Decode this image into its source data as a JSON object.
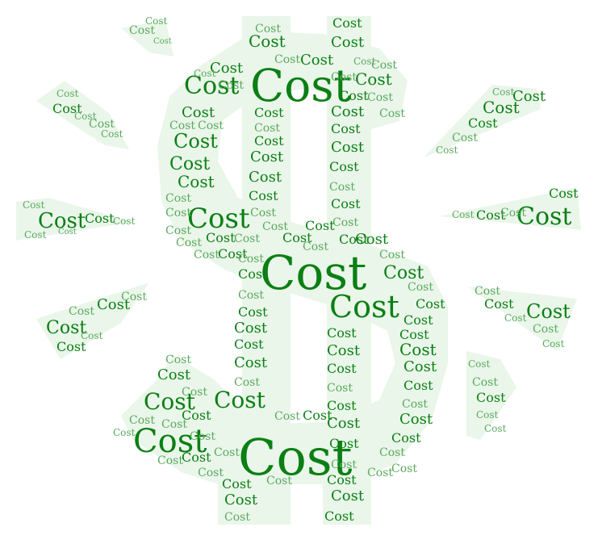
{
  "word": "Cost",
  "colors": {
    "background": "#ffffff",
    "shape_fill": "#eaf6ea",
    "word_dark": "#0b7f14",
    "word_light": "#5aa95e"
  }
}
